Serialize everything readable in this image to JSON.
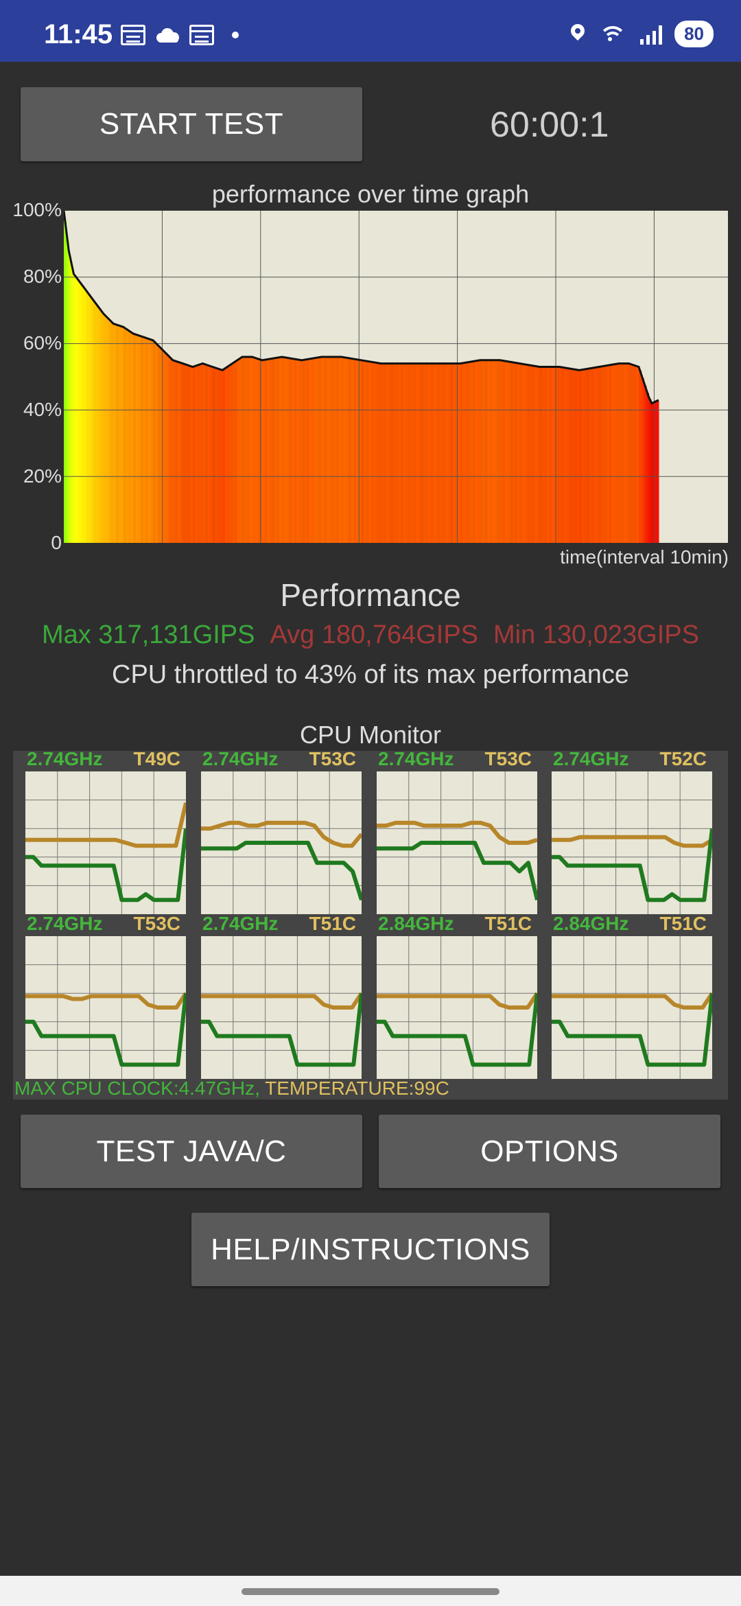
{
  "status_bar": {
    "time": "11:45",
    "left_icons": [
      "calendar-icon",
      "cloud-icon",
      "calendar-icon",
      "dot-icon"
    ],
    "right_icons": [
      "location-icon",
      "wifi-icon",
      "signal-icon"
    ],
    "battery": "80"
  },
  "controls": {
    "start_test": "START TEST",
    "timer": "60:00:1",
    "test_java_c": "TEST JAVA/C",
    "options": "OPTIONS",
    "help": "HELP/INSTRUCTIONS"
  },
  "graph": {
    "title": "performance over time graph",
    "x_label": "time(interval 10min)"
  },
  "chart_data": {
    "type": "area",
    "title": "performance over time graph",
    "xlabel": "time(interval 10min)",
    "ylabel": "",
    "ylim": [
      0,
      100
    ],
    "xlim": [
      0,
      67
    ],
    "yticks": [
      "0",
      "20%",
      "40%",
      "60%",
      "80%",
      "100%"
    ],
    "grid": true,
    "x": [
      0,
      0.5,
      1,
      2,
      3,
      4,
      5,
      6,
      7,
      8,
      9,
      10,
      11,
      12,
      13,
      14,
      15,
      16,
      17,
      18,
      19,
      20,
      22,
      24,
      26,
      28,
      30,
      32,
      34,
      36,
      38,
      40,
      42,
      44,
      46,
      48,
      50,
      52,
      54,
      56,
      57,
      58,
      59,
      59.3,
      60
    ],
    "values": [
      100,
      88,
      81,
      77,
      73,
      69,
      66,
      65,
      63,
      62,
      61,
      58,
      55,
      54,
      53,
      54,
      53,
      52,
      54,
      56,
      56,
      55,
      56,
      55,
      56,
      56,
      55,
      54,
      54,
      54,
      54,
      54,
      55,
      55,
      54,
      53,
      53,
      52,
      53,
      54,
      54,
      53,
      44,
      42,
      43
    ],
    "series_color": "#111111",
    "fill": "heat gradient yellow-green to red"
  },
  "performance": {
    "heading": "Performance",
    "max": "Max 317,131GIPS",
    "avg": "Avg 180,764GIPS",
    "min": "Min 130,023GIPS",
    "throttle_text": "CPU throttled to 43% of its max performance",
    "max_color": "#3aa83a",
    "avg_min_color": "#a63838"
  },
  "cpu_monitor": {
    "title": "CPU Monitor",
    "cores": [
      {
        "freq": "2.74GHz",
        "temp": "T49C",
        "temp_line": [
          52,
          52,
          52,
          52,
          52,
          52,
          52,
          52,
          52,
          52,
          50,
          48,
          48,
          48,
          48,
          48,
          78
        ],
        "freq_line": [
          40,
          40,
          34,
          34,
          34,
          34,
          34,
          34,
          34,
          34,
          34,
          34,
          10,
          10,
          10,
          14,
          10,
          10,
          10,
          10,
          60
        ]
      },
      {
        "freq": "2.74GHz",
        "temp": "T53C",
        "temp_line": [
          60,
          60,
          62,
          64,
          64,
          62,
          62,
          64,
          64,
          64,
          64,
          64,
          62,
          54,
          50,
          48,
          48,
          56
        ],
        "freq_line": [
          46,
          46,
          46,
          46,
          46,
          50,
          50,
          50,
          50,
          50,
          50,
          50,
          50,
          36,
          36,
          36,
          36,
          30,
          10
        ]
      },
      {
        "freq": "2.74GHz",
        "temp": "T53C",
        "temp_line": [
          62,
          62,
          64,
          64,
          64,
          62,
          62,
          62,
          62,
          62,
          64,
          64,
          62,
          54,
          50,
          50,
          50,
          52
        ],
        "freq_line": [
          46,
          46,
          46,
          46,
          46,
          50,
          50,
          50,
          50,
          50,
          50,
          50,
          36,
          36,
          36,
          36,
          30,
          36,
          10
        ]
      },
      {
        "freq": "2.74GHz",
        "temp": "T52C",
        "temp_line": [
          52,
          52,
          52,
          54,
          54,
          54,
          54,
          54,
          54,
          54,
          54,
          54,
          54,
          50,
          48,
          48,
          48,
          52
        ],
        "freq_line": [
          40,
          40,
          34,
          34,
          34,
          34,
          34,
          34,
          34,
          34,
          34,
          34,
          10,
          10,
          10,
          14,
          10,
          10,
          10,
          10,
          60
        ]
      },
      {
        "freq": "2.74GHz",
        "temp": "T53C",
        "temp_line": [
          58,
          58,
          58,
          58,
          58,
          56,
          56,
          58,
          58,
          58,
          58,
          58,
          58,
          52,
          50,
          50,
          50,
          60
        ],
        "freq_line": [
          40,
          40,
          30,
          30,
          30,
          30,
          30,
          30,
          30,
          30,
          30,
          30,
          10,
          10,
          10,
          10,
          10,
          10,
          10,
          10,
          60
        ]
      },
      {
        "freq": "2.74GHz",
        "temp": "T51C",
        "temp_line": [
          58,
          58,
          58,
          58,
          58,
          58,
          58,
          58,
          58,
          58,
          58,
          58,
          58,
          52,
          50,
          50,
          50,
          60
        ],
        "freq_line": [
          40,
          40,
          30,
          30,
          30,
          30,
          30,
          30,
          30,
          30,
          30,
          30,
          10,
          10,
          10,
          10,
          10,
          10,
          10,
          10,
          60
        ]
      },
      {
        "freq": "2.84GHz",
        "temp": "T51C",
        "temp_line": [
          58,
          58,
          58,
          58,
          58,
          58,
          58,
          58,
          58,
          58,
          58,
          58,
          58,
          52,
          50,
          50,
          50,
          60
        ],
        "freq_line": [
          40,
          40,
          30,
          30,
          30,
          30,
          30,
          30,
          30,
          30,
          30,
          30,
          10,
          10,
          10,
          10,
          10,
          10,
          10,
          10,
          60
        ]
      },
      {
        "freq": "2.84GHz",
        "temp": "T51C",
        "temp_line": [
          58,
          58,
          58,
          58,
          58,
          58,
          58,
          58,
          58,
          58,
          58,
          58,
          58,
          52,
          50,
          50,
          50,
          60
        ],
        "freq_line": [
          40,
          40,
          30,
          30,
          30,
          30,
          30,
          30,
          30,
          30,
          30,
          30,
          10,
          10,
          10,
          10,
          10,
          10,
          10,
          10,
          60
        ]
      }
    ],
    "footer_clock": "MAX CPU CLOCK:4.47GHz,",
    "footer_temp": "TEMPERATURE:99C",
    "freq_color": "#1f7a1f",
    "temp_color": "#b8862a"
  }
}
